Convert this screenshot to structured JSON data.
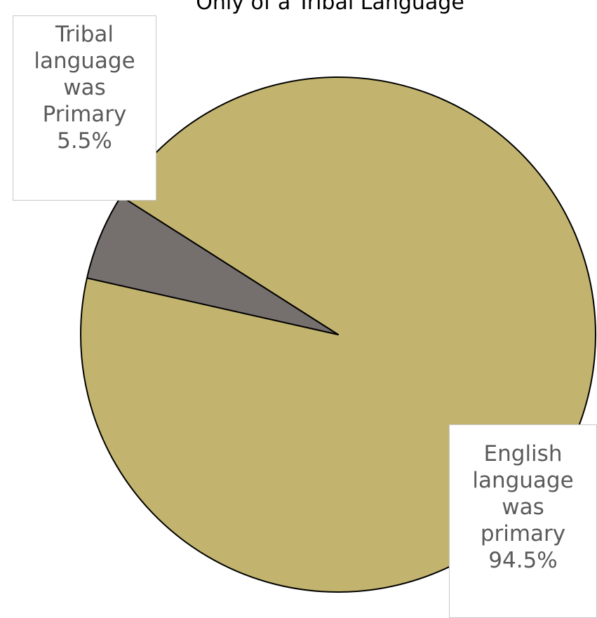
{
  "chart_data": {
    "type": "pie",
    "title": "Only of a Tribal Language",
    "slices": [
      {
        "label_lines": [
          "English",
          "language",
          "was",
          "primary"
        ],
        "value": 94.5,
        "value_label": "94.5%",
        "color": "#c2b46e"
      },
      {
        "label_lines": [
          "Tribal",
          "language",
          "was",
          "Primary"
        ],
        "value": 5.5,
        "value_label": "5.5%",
        "color": "#756f6e"
      }
    ]
  }
}
